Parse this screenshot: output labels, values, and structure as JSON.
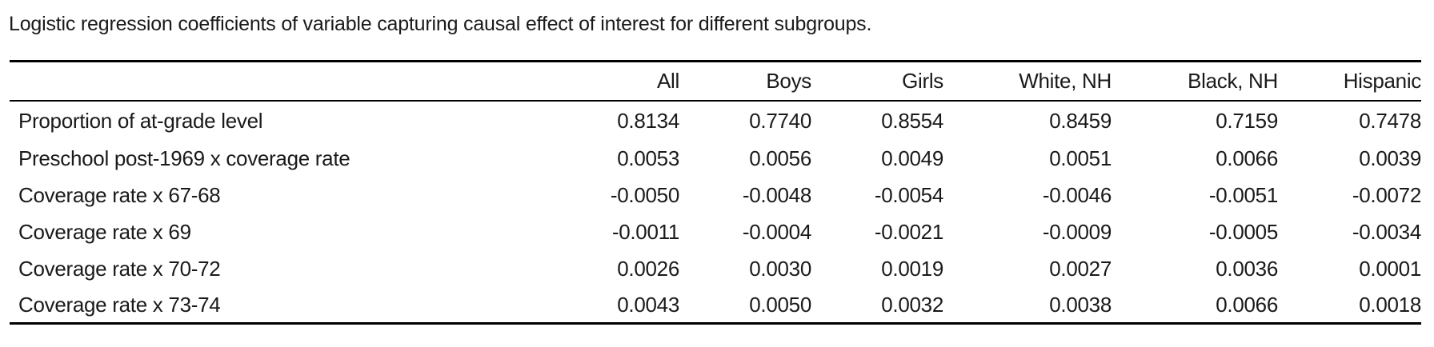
{
  "caption": "Logistic regression coefficients of variable capturing causal effect of interest for different subgroups.",
  "table": {
    "columns": [
      "",
      "All",
      "Boys",
      "Girls",
      "White, NH",
      "Black, NH",
      "Hispanic"
    ],
    "rows": [
      {
        "label": "Proportion of at-grade level",
        "values": [
          "0.8134",
          "0.7740",
          "0.8554",
          "0.8459",
          "0.7159",
          "0.7478"
        ]
      },
      {
        "label": "Preschool post-1969 x coverage rate",
        "values": [
          "0.0053",
          "0.0056",
          "0.0049",
          "0.0051",
          "0.0066",
          "0.0039"
        ]
      },
      {
        "label": "Coverage rate x 67-68",
        "values": [
          "-0.0050",
          "-0.0048",
          "-0.0054",
          "-0.0046",
          "-0.0051",
          "-0.0072"
        ]
      },
      {
        "label": "Coverage rate x 69",
        "values": [
          "-0.0011",
          "-0.0004",
          "-0.0021",
          "-0.0009",
          "-0.0005",
          "-0.0034"
        ]
      },
      {
        "label": "Coverage rate x 70-72",
        "values": [
          "0.0026",
          "0.0030",
          "0.0019",
          "0.0027",
          "0.0036",
          "0.0001"
        ]
      },
      {
        "label": "Coverage rate x 73-74",
        "values": [
          "0.0043",
          "0.0050",
          "0.0032",
          "0.0038",
          "0.0066",
          "0.0018"
        ]
      }
    ]
  }
}
